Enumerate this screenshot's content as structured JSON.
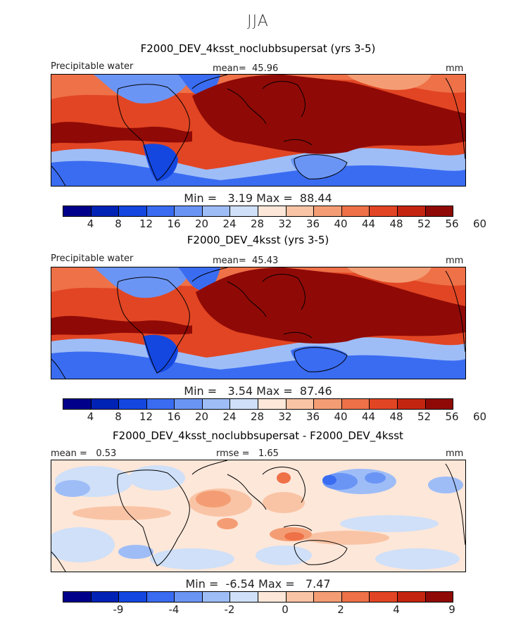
{
  "figure": {
    "season": "JJA"
  },
  "panels": [
    {
      "title": "F2000_DEV_4ksst_noclubbsupersat (yrs 3-5)",
      "variable": "Precipitable water",
      "mean_label": "mean=",
      "mean": "45.96",
      "units": "mm",
      "min_label": "Min =",
      "min": "3.19",
      "max_label": "Max =",
      "max": "88.44"
    },
    {
      "title": "F2000_DEV_4ksst (yrs 3-5)",
      "variable": "Precipitable water",
      "mean_label": "mean=",
      "mean": "45.43",
      "units": "mm",
      "min_label": "Min =",
      "min": "3.54",
      "max_label": "Max =",
      "max": "87.46"
    },
    {
      "title": "F2000_DEV_4ksst_noclubbsupersat - F2000_DEV_4ksst",
      "mean_label": "mean =",
      "mean": "0.53",
      "rmse_label": "rmse =",
      "rmse": "1.65",
      "units": "mm",
      "min_label": "Min =",
      "min": "-6.54",
      "max_label": "Max =",
      "max": "7.47"
    }
  ],
  "colorbars": {
    "absolute": {
      "colors": [
        "#00008b",
        "#0022b5",
        "#1447e0",
        "#3a6cf2",
        "#6b95f5",
        "#9ebdf7",
        "#cfe0f8",
        "#fde7d9",
        "#f9c4a5",
        "#f49d74",
        "#ee7148",
        "#e24523",
        "#c42510",
        "#8f0a06"
      ],
      "tick_labels": [
        "4",
        "8",
        "12",
        "16",
        "20",
        "24",
        "28",
        "32",
        "36",
        "40",
        "44",
        "48",
        "52",
        "56",
        "60"
      ]
    },
    "difference": {
      "colors": [
        "#00008b",
        "#0022b5",
        "#1447e0",
        "#3a6cf2",
        "#6b95f5",
        "#9ebdf7",
        "#cfe0f8",
        "#fde7d9",
        "#f9c4a5",
        "#f49d74",
        "#ee7148",
        "#e24523",
        "#c42510",
        "#8f0a06"
      ],
      "tick_labels": [
        "-9",
        "-4",
        "-2",
        "0",
        "2",
        "4",
        "9"
      ]
    }
  },
  "colors": {
    "abs_low": "#1447e0",
    "abs_mid": "#cfe0f8",
    "abs_high": "#8f0a06",
    "diff_neg": "#6b95f5",
    "diff_pos": "#ee7148"
  }
}
